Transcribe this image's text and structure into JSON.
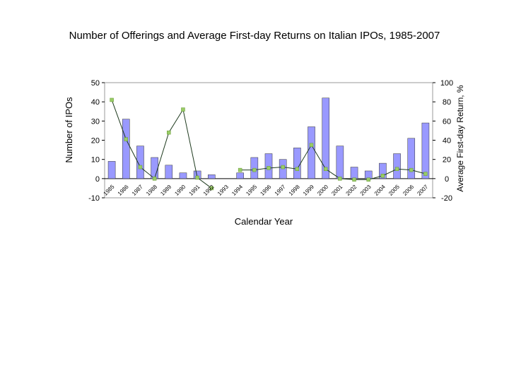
{
  "chart_data": {
    "type": "bar-line",
    "title": "Number of Offerings and Average First-day Returns on Italian IPOs, 1985-2007",
    "x_label": "Calendar Year",
    "y_label": "Number of IPOs",
    "y2_label": "Average First-day Return, %",
    "categories": [
      "1985",
      "1986",
      "1987",
      "1988",
      "1989",
      "1990",
      "1991",
      "1992",
      "1993",
      "1994",
      "1995",
      "1996",
      "1997",
      "1998",
      "1999",
      "2000",
      "2001",
      "2002",
      "2003",
      "2004",
      "2005",
      "2006",
      "2007"
    ],
    "series": [
      {
        "type": "bar",
        "color": "#9999ff",
        "values": [
          9,
          31,
          17,
          11,
          7,
          3,
          4,
          2,
          0,
          3,
          11,
          13,
          10,
          16,
          27,
          42,
          17,
          6,
          4,
          8,
          13,
          21,
          29
        ]
      },
      {
        "type": "line",
        "axis": "y2",
        "color": "#1e3a1e",
        "marker_color": "#99cc66",
        "values": [
          82,
          41,
          12,
          0,
          48,
          72,
          1,
          -10,
          null,
          9,
          9,
          11,
          12,
          10,
          35,
          10,
          0,
          -1,
          -1,
          3,
          10,
          9,
          5
        ]
      }
    ],
    "ylim": [
      -10,
      50
    ],
    "yticks": [
      -10,
      0,
      10,
      20,
      30,
      40,
      50
    ],
    "y2lim": [
      -20,
      100
    ],
    "y2ticks": [
      -20,
      0,
      20,
      40,
      60,
      80,
      100
    ]
  }
}
